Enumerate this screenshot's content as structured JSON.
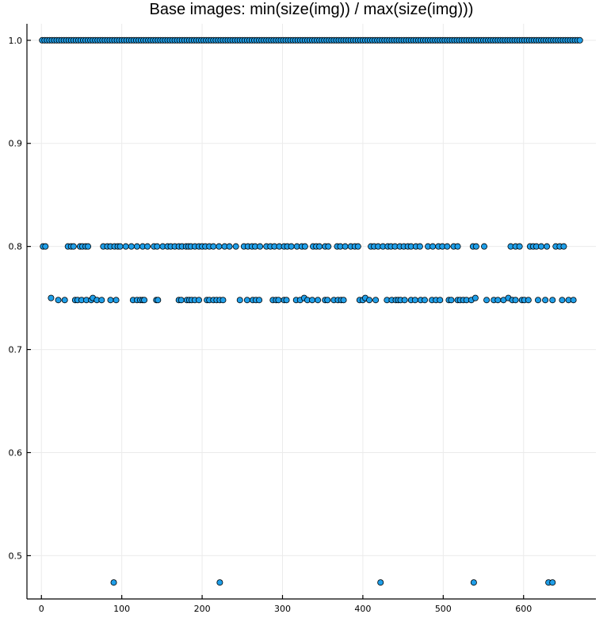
{
  "chart_data": {
    "type": "scatter",
    "title": "Base images: min(size(img)) / max(size(img)))",
    "xlabel": "",
    "ylabel": "",
    "xlim": [
      -18,
      690
    ],
    "ylim": [
      0.458,
      1.016
    ],
    "xticks": [
      0,
      100,
      200,
      300,
      400,
      500,
      600
    ],
    "yticks": [
      0.5,
      0.6,
      0.7,
      0.8,
      0.9,
      1.0
    ],
    "ytick_labels": [
      "0.5",
      "0.6",
      "0.7",
      "0.8",
      "0.9",
      "1.0"
    ],
    "grid": true,
    "legend": "none",
    "marker_color": "#1f9ee8",
    "series_075": {
      "x": [
        12,
        21,
        29,
        42,
        45,
        50,
        56,
        62,
        64,
        69,
        75,
        86,
        93,
        114,
        119,
        123,
        126,
        128,
        143,
        145,
        171,
        174,
        181,
        184,
        187,
        191,
        196,
        206,
        209,
        214,
        218,
        222,
        226,
        247,
        256,
        263,
        267,
        271,
        288,
        292,
        295,
        302,
        305,
        317,
        322,
        327,
        331,
        337,
        344,
        353,
        356,
        364,
        369,
        373,
        376,
        396,
        400,
        403,
        408,
        416,
        430,
        436,
        441,
        444,
        447,
        452,
        460,
        465,
        472,
        477,
        486,
        491,
        496,
        507,
        510,
        518,
        521,
        525,
        529,
        535,
        540,
        554,
        563,
        568,
        575,
        581,
        586,
        590,
        598,
        601,
        606,
        618,
        627,
        636,
        648,
        656,
        662
      ],
      "y": [
        0.75,
        0.748,
        0.748,
        0.748,
        0.748,
        0.748,
        0.748,
        0.748,
        0.75,
        0.748,
        0.748,
        0.748,
        0.748,
        0.748,
        0.748,
        0.748,
        0.748,
        0.748,
        0.748,
        0.748,
        0.748,
        0.748,
        0.748,
        0.748,
        0.748,
        0.748,
        0.748,
        0.748,
        0.748,
        0.748,
        0.748,
        0.748,
        0.748,
        0.748,
        0.748,
        0.748,
        0.748,
        0.748,
        0.748,
        0.748,
        0.748,
        0.748,
        0.748,
        0.748,
        0.748,
        0.75,
        0.748,
        0.748,
        0.748,
        0.748,
        0.748,
        0.748,
        0.748,
        0.748,
        0.748,
        0.748,
        0.748,
        0.75,
        0.748,
        0.748,
        0.748,
        0.748,
        0.748,
        0.748,
        0.748,
        0.748,
        0.748,
        0.748,
        0.748,
        0.748,
        0.748,
        0.748,
        0.748,
        0.748,
        0.748,
        0.748,
        0.748,
        0.748,
        0.748,
        0.748,
        0.75,
        0.748,
        0.748,
        0.748,
        0.748,
        0.75,
        0.748,
        0.748,
        0.748,
        0.748,
        0.748,
        0.748,
        0.748,
        0.748,
        0.748,
        0.748,
        0.748
      ]
    },
    "series_08": {
      "x": [
        2,
        5,
        33,
        37,
        40,
        48,
        51,
        55,
        58,
        77,
        82,
        86,
        91,
        95,
        98,
        105,
        112,
        119,
        126,
        132,
        140,
        144,
        151,
        157,
        161,
        166,
        171,
        175,
        180,
        183,
        186,
        191,
        196,
        200,
        204,
        209,
        214,
        221,
        228,
        234,
        242,
        252,
        257,
        262,
        266,
        272,
        280,
        285,
        290,
        296,
        302,
        306,
        311,
        318,
        324,
        328,
        338,
        342,
        346,
        353,
        357,
        368,
        372,
        378,
        385,
        390,
        394,
        410,
        414,
        419,
        425,
        431,
        435,
        440,
        446,
        451,
        456,
        460,
        466,
        471,
        481,
        487,
        494,
        499,
        505,
        513,
        518,
        537,
        541,
        551,
        584,
        590,
        595,
        608,
        612,
        616,
        622,
        629,
        640,
        645,
        650
      ],
      "y": [
        0.8,
        0.8,
        0.8,
        0.8,
        0.8,
        0.8,
        0.8,
        0.8,
        0.8,
        0.8,
        0.8,
        0.8,
        0.8,
        0.8,
        0.8,
        0.8,
        0.8,
        0.8,
        0.8,
        0.8,
        0.8,
        0.8,
        0.8,
        0.8,
        0.8,
        0.8,
        0.8,
        0.8,
        0.8,
        0.8,
        0.8,
        0.8,
        0.8,
        0.8,
        0.8,
        0.8,
        0.8,
        0.8,
        0.8,
        0.8,
        0.8,
        0.8,
        0.8,
        0.8,
        0.8,
        0.8,
        0.8,
        0.8,
        0.8,
        0.8,
        0.8,
        0.8,
        0.8,
        0.8,
        0.8,
        0.8,
        0.8,
        0.8,
        0.8,
        0.8,
        0.8,
        0.8,
        0.8,
        0.8,
        0.8,
        0.8,
        0.8,
        0.8,
        0.8,
        0.8,
        0.8,
        0.8,
        0.8,
        0.8,
        0.8,
        0.8,
        0.8,
        0.8,
        0.8,
        0.8,
        0.8,
        0.8,
        0.8,
        0.8,
        0.8,
        0.8,
        0.8,
        0.8,
        0.8,
        0.8,
        0.8,
        0.8,
        0.8,
        0.8,
        0.8,
        0.8,
        0.8,
        0.8,
        0.8,
        0.8,
        0.8
      ]
    },
    "series_047": {
      "x": [
        90,
        222,
        422,
        538,
        631,
        636
      ],
      "y": [
        0.474,
        0.474,
        0.474,
        0.474,
        0.474,
        0.474
      ]
    },
    "series_1": {
      "x_start": 1,
      "x_end": 670,
      "x_step": 3,
      "y": 1.0
    }
  }
}
